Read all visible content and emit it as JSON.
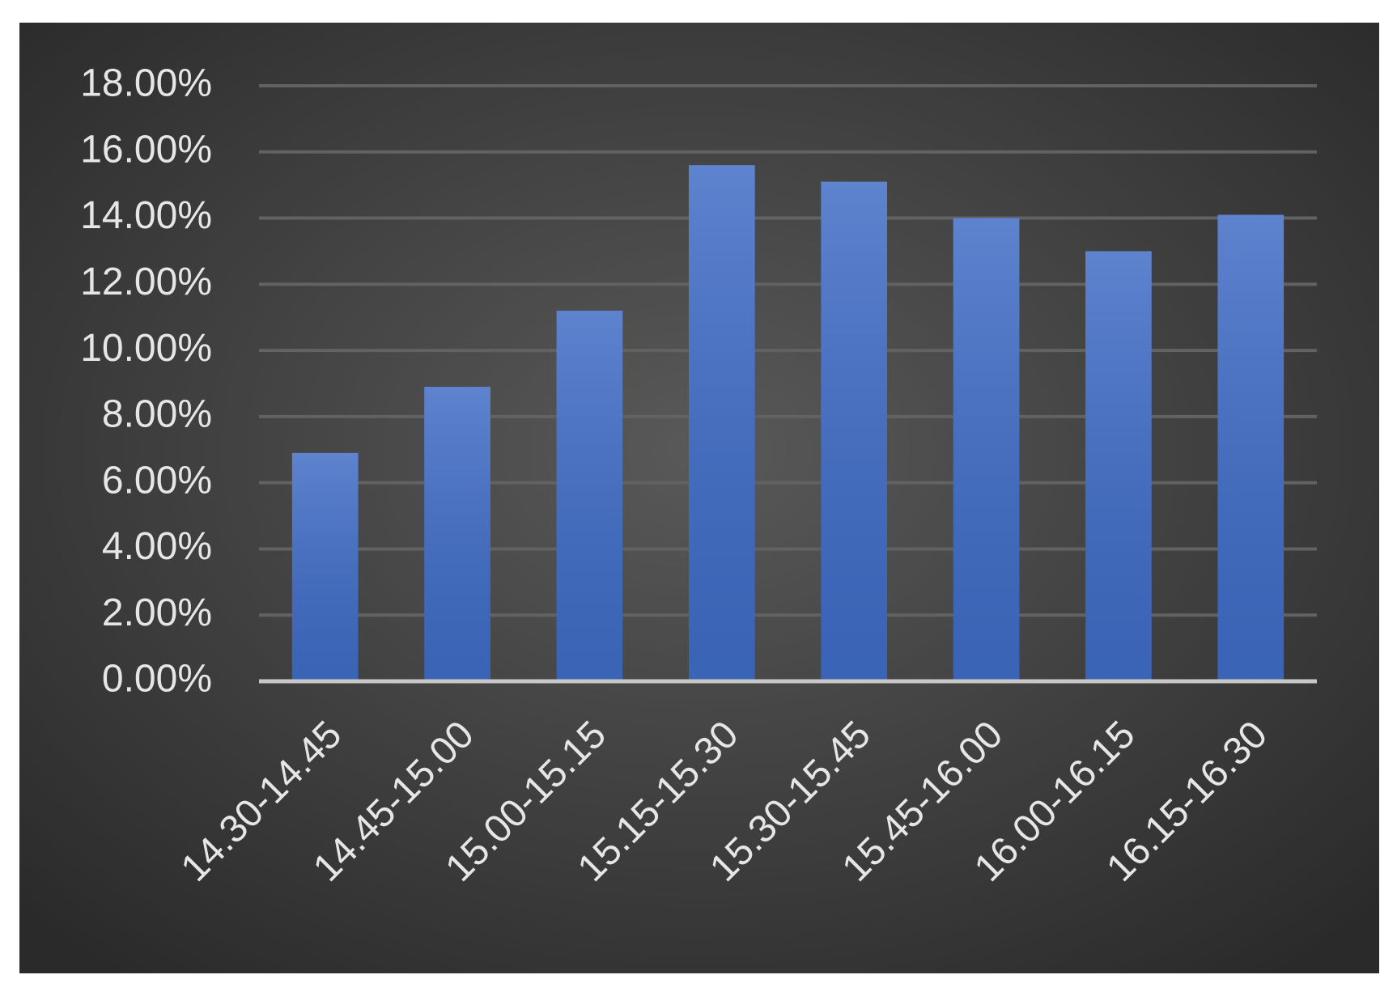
{
  "chart_data": {
    "type": "bar",
    "categories": [
      "14.30-14.45",
      "14.45-15.00",
      "15.00-15.15",
      "15.15-15.30",
      "15.30-15.45",
      "15.45-16.00",
      "16.00-16.15",
      "16.15-16.30"
    ],
    "values": [
      6.9,
      8.9,
      11.2,
      15.6,
      15.1,
      14.0,
      13.0,
      14.1
    ],
    "color": "#3f6cc6",
    "ylim": [
      0,
      18
    ],
    "yticks": [
      {
        "value": 0,
        "label": "0.00%"
      },
      {
        "value": 2,
        "label": "2.00%"
      },
      {
        "value": 4,
        "label": "4.00%"
      },
      {
        "value": 6,
        "label": "6.00%"
      },
      {
        "value": 8,
        "label": "8.00%"
      },
      {
        "value": 10,
        "label": "10.00%"
      },
      {
        "value": 12,
        "label": "12.00%"
      },
      {
        "value": 14,
        "label": "14.00%"
      },
      {
        "value": 16,
        "label": "16.00%"
      },
      {
        "value": 18,
        "label": "18.00%"
      }
    ],
    "grid": true
  }
}
